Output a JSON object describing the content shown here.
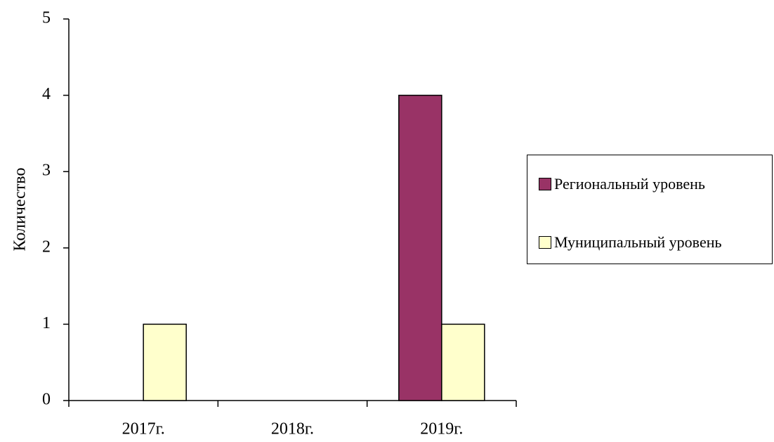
{
  "chart_data": {
    "type": "bar",
    "categories": [
      "2017г.",
      "2018г.",
      "2019г."
    ],
    "series": [
      {
        "name": "Региональный уровень",
        "color": "#993366",
        "values": [
          0,
          0,
          4
        ]
      },
      {
        "name": "Муниципальный уровень",
        "color": "#ffffcc",
        "values": [
          1,
          0,
          1
        ]
      }
    ],
    "y_label": "Количество",
    "ylim": [
      0,
      5
    ],
    "yticks": [
      0,
      1,
      2,
      3,
      4,
      5
    ],
    "grid": false,
    "legend": "right"
  }
}
